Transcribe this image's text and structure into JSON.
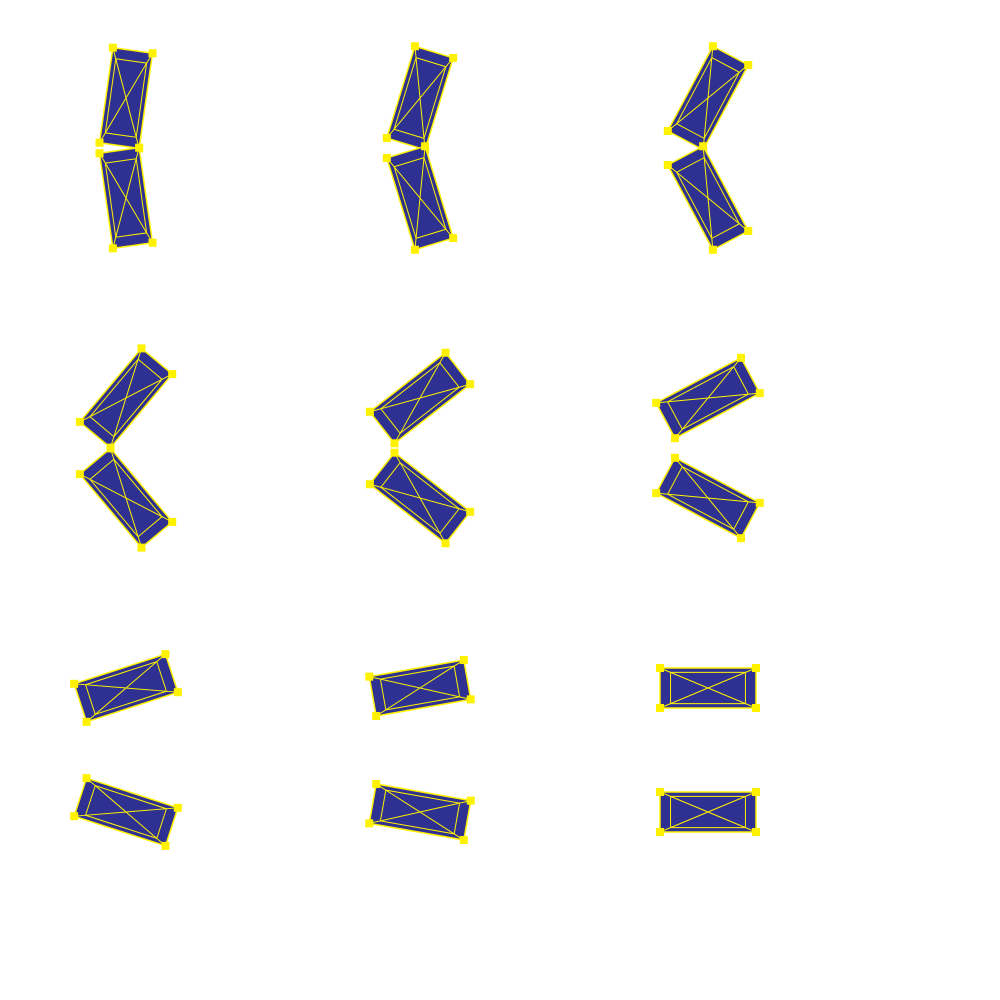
{
  "colors": {
    "background": "#ffffff",
    "fill": "#2e3191",
    "stroke": "#fff200",
    "marker": "#fff200"
  },
  "pairs": [
    {
      "top_tilt_deg": 8,
      "bottom_tilt_deg": -8
    },
    {
      "top_tilt_deg": 17,
      "bottom_tilt_deg": -17
    },
    {
      "top_tilt_deg": 28,
      "bottom_tilt_deg": -28
    },
    {
      "top_tilt_deg": 40,
      "bottom_tilt_deg": -40
    },
    {
      "top_tilt_deg": 52,
      "bottom_tilt_deg": -52
    },
    {
      "top_tilt_deg": 62,
      "bottom_tilt_deg": -62
    },
    {
      "top_tilt_deg": 72,
      "bottom_tilt_deg": -72
    },
    {
      "top_tilt_deg": 80,
      "bottom_tilt_deg": -80
    },
    {
      "top_tilt_deg": 90,
      "bottom_tilt_deg": 90
    }
  ]
}
